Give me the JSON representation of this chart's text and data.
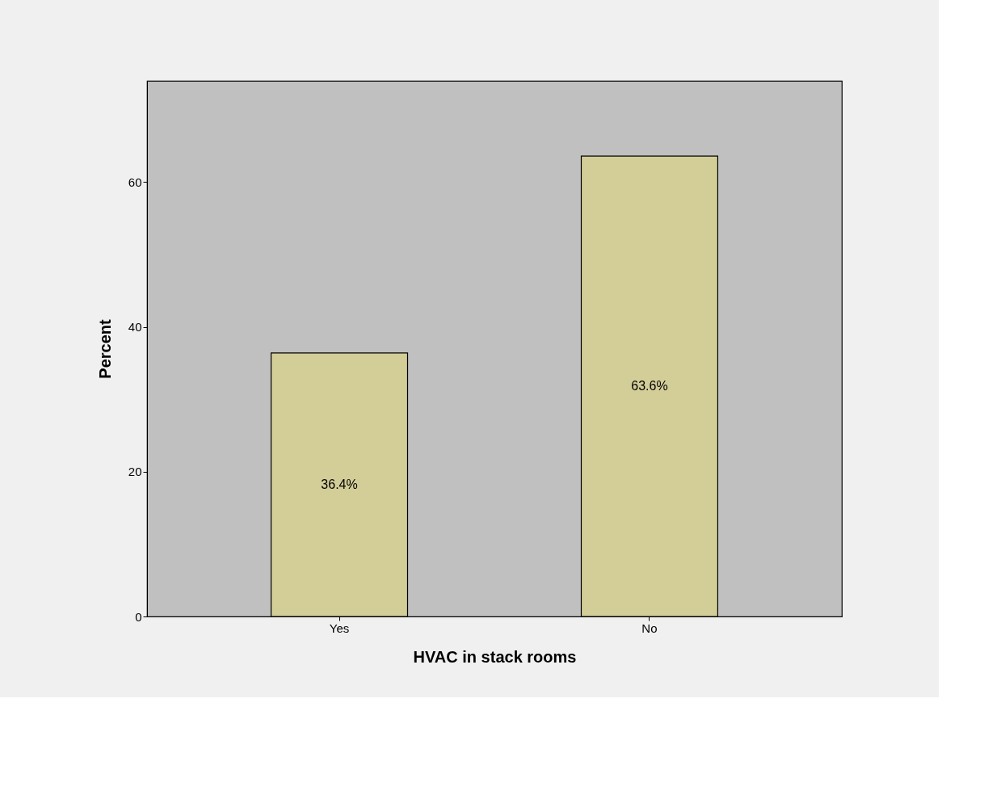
{
  "chart_data": {
    "type": "bar",
    "xlabel": "HVAC in stack rooms",
    "ylabel": "Percent",
    "categories": [
      "Yes",
      "No"
    ],
    "values": [
      36.4,
      63.6
    ],
    "value_labels": [
      "36.4%",
      "63.6%"
    ],
    "color": "#d3cd98",
    "ylim": [
      0,
      74
    ],
    "yticks": [
      0,
      20,
      40,
      60
    ],
    "grid": false
  }
}
